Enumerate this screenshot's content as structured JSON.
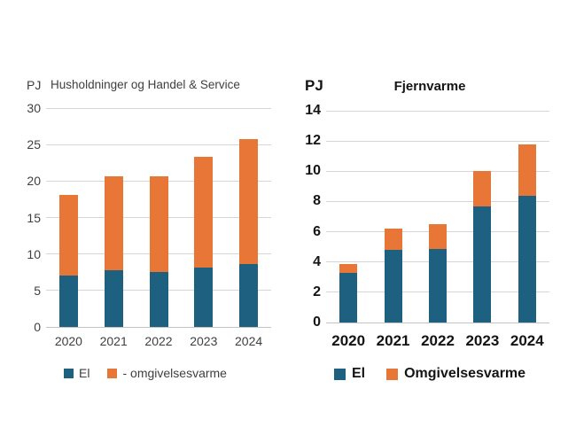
{
  "colors": {
    "el": "#1e607f",
    "omgivelsesvarme": "#e87636",
    "gridline": "#d6d6d6",
    "axis_line": "#c4c4c4",
    "left_chart_text": "#3f3f3f",
    "right_chart_text": "#141414",
    "background": "#ffffff"
  },
  "chart_data": [
    {
      "type": "bar",
      "stacked": true,
      "title": "Husholdninger og Handel & Service",
      "unit": "PJ",
      "categories": [
        "2020",
        "2021",
        "2022",
        "2023",
        "2024"
      ],
      "series": [
        {
          "name": "El",
          "color_key": "el",
          "values": [
            7.0,
            7.8,
            7.5,
            8.1,
            8.6
          ]
        },
        {
          "name": "- omgivelsesvarme",
          "color_key": "omgivelsesvarme",
          "values": [
            11.1,
            12.9,
            13.2,
            15.2,
            17.1
          ]
        }
      ],
      "totals": [
        18.1,
        20.7,
        20.7,
        23.3,
        25.7
      ],
      "ylim": [
        0,
        30
      ],
      "yticks": [
        0,
        5,
        10,
        15,
        20,
        25,
        30
      ],
      "grid": true,
      "legend_position": "bottom"
    },
    {
      "type": "bar",
      "stacked": true,
      "title": "Fjernvarme",
      "unit": "PJ",
      "categories": [
        "2020",
        "2021",
        "2022",
        "2023",
        "2024"
      ],
      "series": [
        {
          "name": "El",
          "color_key": "el",
          "values": [
            3.3,
            4.8,
            4.85,
            7.7,
            8.35
          ]
        },
        {
          "name": "Omgivelsesvarme",
          "color_key": "omgivelsesvarme",
          "values": [
            0.55,
            1.4,
            1.65,
            2.3,
            3.4
          ]
        }
      ],
      "totals": [
        3.85,
        6.2,
        6.5,
        10.0,
        11.75
      ],
      "ylim": [
        0,
        14
      ],
      "yticks": [
        0,
        2,
        4,
        6,
        8,
        10,
        12,
        14
      ],
      "grid": true,
      "legend_position": "bottom"
    }
  ]
}
